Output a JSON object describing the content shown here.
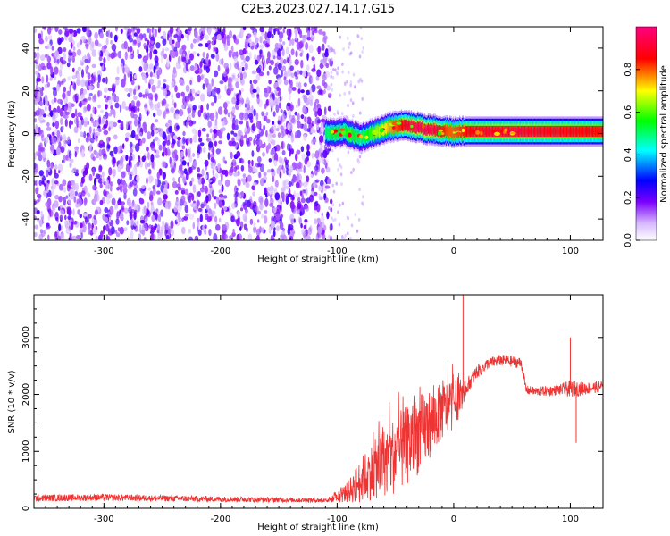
{
  "title": "C2E3.2023.027.14.17.G15",
  "chart_data": [
    {
      "type": "heatmap",
      "xlabel": "Height of straight line (km)",
      "ylabel": "Frequency (Hz)",
      "xlim": [
        -360,
        128
      ],
      "ylim": [
        -50,
        50
      ],
      "x_ticks": [
        -300,
        -200,
        -100,
        0,
        100
      ],
      "y_ticks": [
        -40,
        -20,
        0,
        20,
        40
      ],
      "colorbar": {
        "label": "Normalized spectral amplitude",
        "range": [
          0,
          1
        ],
        "ticks": [
          "0.0",
          "0.2",
          "0.4",
          "0.6",
          "0.8"
        ],
        "tick_values": [
          0,
          0.2,
          0.4,
          0.6,
          0.8
        ],
        "colormap": [
          "#ffffff",
          "#7b00ff",
          "#0000ff",
          "#00ffff",
          "#00ff00",
          "#ffff00",
          "#ff0000",
          "#ff007f"
        ]
      },
      "noise_region": {
        "x_range": [
          -360,
          -108
        ],
        "freq_range": [
          -50,
          50
        ]
      },
      "signal_track": {
        "x": [
          -110,
          -100,
          -95,
          -90,
          -85,
          -80,
          -75,
          -70,
          -65,
          -60,
          -55,
          -50,
          -45,
          -40,
          -35,
          -30,
          -25,
          -20,
          -15,
          -10,
          -5,
          0,
          5,
          10,
          20,
          40,
          60,
          80,
          100,
          110,
          128
        ],
        "freq": [
          0.5,
          0,
          1,
          0,
          -1,
          -2,
          -1,
          0,
          1,
          2,
          3,
          3.5,
          4,
          4,
          3,
          3,
          2,
          2,
          1.5,
          1,
          1,
          0.5,
          1,
          1,
          1,
          1,
          1,
          1,
          1,
          1,
          1
        ],
        "peak_amplitude": [
          0.5,
          0.55,
          0.5,
          0.6,
          0.55,
          0.5,
          0.55,
          0.6,
          0.65,
          0.7,
          0.75,
          0.8,
          0.85,
          0.9,
          0.92,
          0.95,
          0.95,
          0.93,
          0.9,
          0.85,
          0.8,
          0.8,
          0.82,
          0.85,
          0.88,
          0.9,
          0.9,
          0.88,
          0.87,
          0.86,
          0.85
        ]
      }
    },
    {
      "type": "line",
      "xlabel": "Height of straight line (km)",
      "ylabel": "SNR (10 * v/v)",
      "xlim": [
        -360,
        128
      ],
      "ylim": [
        0,
        3750
      ],
      "x_ticks": [
        -300,
        -200,
        -100,
        0,
        100
      ],
      "y_ticks": [
        0,
        1000,
        2000,
        3000
      ],
      "line_color": "#ee3333",
      "series": [
        {
          "x": [
            -360,
            -300,
            -250,
            -200,
            -150,
            -110,
            -100,
            -90,
            -80,
            -70,
            -60,
            -50,
            -40,
            -30,
            -20,
            -10,
            0,
            5,
            10,
            20,
            30,
            40,
            50,
            58,
            62,
            70,
            80,
            90,
            100,
            110,
            120,
            128
          ],
          "y": [
            180,
            190,
            175,
            160,
            150,
            140,
            180,
            300,
            480,
            650,
            800,
            950,
            1100,
            1300,
            1500,
            1700,
            1850,
            1900,
            2100,
            2400,
            2550,
            2600,
            2580,
            2550,
            2080,
            2050,
            2060,
            2080,
            2100,
            2100,
            2120,
            2150
          ],
          "noise": [
            60,
            60,
            55,
            50,
            45,
            40,
            80,
            200,
            400,
            500,
            600,
            700,
            700,
            700,
            600,
            500,
            450,
            300,
            150,
            120,
            100,
            100,
            100,
            100,
            80,
            80,
            90,
            90,
            150,
            120,
            100,
            100
          ]
        }
      ],
      "spikes": [
        {
          "x": 8,
          "y": 3750
        },
        {
          "x": 100,
          "y": 3000
        },
        {
          "x": 105,
          "y": 1150
        }
      ]
    }
  ]
}
